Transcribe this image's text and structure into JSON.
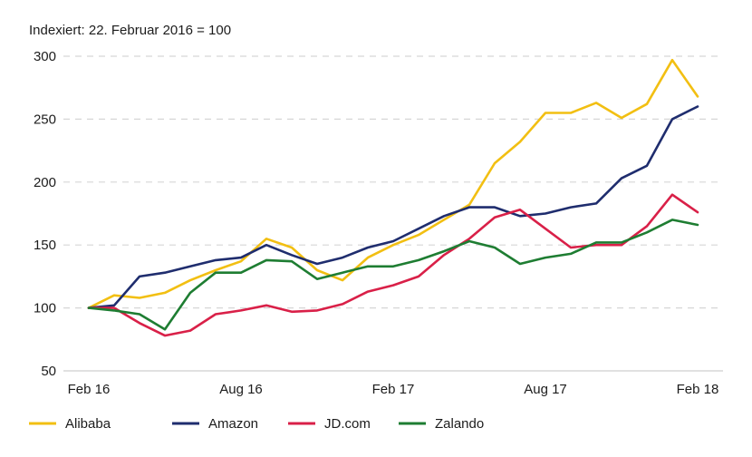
{
  "chart_data": {
    "type": "line",
    "subtitle": "Indexiert: 22. Februar 2016 = 100",
    "ylim": [
      50,
      300
    ],
    "y_ticks": [
      "50",
      "100",
      "150",
      "200",
      "250",
      "300"
    ],
    "x_ticks": [
      "Feb 16",
      "Aug 16",
      "Feb 17",
      "Aug 17",
      "Feb 18"
    ],
    "x": [
      "Feb 16",
      "Mar 16",
      "Apr 16",
      "May 16",
      "Jun 16",
      "Jul 16",
      "Aug 16",
      "Sep 16",
      "Oct 16",
      "Nov 16",
      "Dec 16",
      "Jan 17",
      "Feb 17",
      "Mar 17",
      "Apr 17",
      "May 17",
      "Jun 17",
      "Jul 17",
      "Aug 17",
      "Sep 17",
      "Oct 17",
      "Nov 17",
      "Dec 17",
      "Jan 18",
      "Feb 18"
    ],
    "grid": true,
    "legend_position": "bottom",
    "series": [
      {
        "name": "Alibaba",
        "color": "#f2bf12",
        "values": [
          100,
          110,
          108,
          112,
          122,
          130,
          137,
          155,
          148,
          130,
          122,
          140,
          150,
          158,
          170,
          182,
          215,
          232,
          255,
          255,
          263,
          251,
          262,
          297,
          268
        ]
      },
      {
        "name": "Amazon",
        "color": "#1f2d6e",
        "values": [
          100,
          102,
          125,
          128,
          133,
          138,
          140,
          150,
          142,
          135,
          140,
          148,
          153,
          163,
          173,
          180,
          180,
          173,
          175,
          180,
          183,
          203,
          213,
          250,
          260
        ]
      },
      {
        "name": "JD.com",
        "color": "#d92048",
        "values": [
          100,
          100,
          88,
          78,
          82,
          95,
          98,
          102,
          97,
          98,
          103,
          113,
          118,
          125,
          142,
          155,
          172,
          178,
          163,
          148,
          150,
          150,
          165,
          190,
          176
        ]
      },
      {
        "name": "Zalando",
        "color": "#1e7d32",
        "values": [
          100,
          98,
          95,
          83,
          112,
          128,
          128,
          138,
          137,
          123,
          128,
          133,
          133,
          138,
          145,
          153,
          148,
          135,
          140,
          143,
          152,
          152,
          160,
          170,
          166
        ]
      }
    ]
  }
}
